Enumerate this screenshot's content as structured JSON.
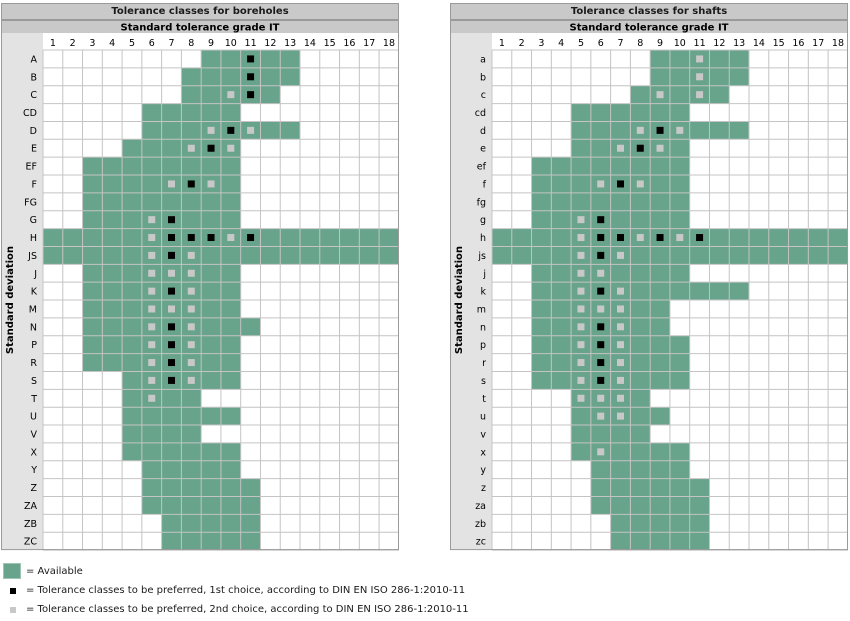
{
  "colors": {
    "available": "#67a48b",
    "first_choice": "#000000",
    "second_choice": "#c8c8c8",
    "grid_line": "#c4c4c4",
    "header_bg": "#c9c9c9",
    "sidebar_bg": "#e3e3e3"
  },
  "grades": [
    1,
    2,
    3,
    4,
    5,
    6,
    7,
    8,
    9,
    10,
    11,
    12,
    13,
    14,
    15,
    16,
    17,
    18
  ],
  "panels": [
    {
      "title": "Tolerance classes for boreholes",
      "subtitle": "Standard tolerance grade IT",
      "axis_label": "Standard deviation",
      "rows": [
        {
          "label": "A",
          "avail": [
            9,
            13
          ],
          "first": [
            11
          ],
          "second": []
        },
        {
          "label": "B",
          "avail": [
            8,
            13
          ],
          "first": [
            11
          ],
          "second": []
        },
        {
          "label": "C",
          "avail": [
            8,
            12
          ],
          "first": [
            11
          ],
          "second": [
            10
          ]
        },
        {
          "label": "CD",
          "avail": [
            6,
            10
          ],
          "first": [],
          "second": []
        },
        {
          "label": "D",
          "avail": [
            6,
            13
          ],
          "first": [
            10
          ],
          "second": [
            9,
            11
          ]
        },
        {
          "label": "E",
          "avail": [
            5,
            10
          ],
          "first": [
            9
          ],
          "second": [
            8,
            10
          ]
        },
        {
          "label": "EF",
          "avail": [
            3,
            10
          ],
          "first": [],
          "second": []
        },
        {
          "label": "F",
          "avail": [
            3,
            10
          ],
          "first": [
            8
          ],
          "second": [
            7,
            9
          ]
        },
        {
          "label": "FG",
          "avail": [
            3,
            10
          ],
          "first": [],
          "second": []
        },
        {
          "label": "G",
          "avail": [
            3,
            10
          ],
          "first": [
            7
          ],
          "second": [
            6
          ]
        },
        {
          "label": "H",
          "avail": [
            1,
            18
          ],
          "first": [
            7,
            8,
            9,
            11
          ],
          "second": [
            6,
            10
          ]
        },
        {
          "label": "JS",
          "avail": [
            1,
            18
          ],
          "first": [
            7
          ],
          "second": [
            6,
            8
          ]
        },
        {
          "label": "J",
          "avail": [
            3,
            10
          ],
          "first": [],
          "second": [
            6,
            7,
            8
          ]
        },
        {
          "label": "K",
          "avail": [
            3,
            10
          ],
          "first": [
            7
          ],
          "second": [
            6,
            8
          ]
        },
        {
          "label": "M",
          "avail": [
            3,
            10
          ],
          "first": [],
          "second": [
            6,
            7,
            8
          ]
        },
        {
          "label": "N",
          "avail": [
            3,
            11
          ],
          "first": [
            7
          ],
          "second": [
            6,
            8
          ]
        },
        {
          "label": "P",
          "avail": [
            3,
            10
          ],
          "first": [
            7
          ],
          "second": [
            6,
            8
          ]
        },
        {
          "label": "R",
          "avail": [
            3,
            10
          ],
          "first": [
            7
          ],
          "second": [
            6,
            8
          ]
        },
        {
          "label": "S",
          "avail": [
            5,
            10
          ],
          "first": [
            7
          ],
          "second": [
            6,
            8
          ]
        },
        {
          "label": "T",
          "avail": [
            5,
            8
          ],
          "first": [],
          "second": [
            6
          ]
        },
        {
          "label": "U",
          "avail": [
            5,
            10
          ],
          "first": [],
          "second": []
        },
        {
          "label": "V",
          "avail": [
            5,
            8
          ],
          "first": [],
          "second": []
        },
        {
          "label": "X",
          "avail": [
            5,
            10
          ],
          "first": [],
          "second": []
        },
        {
          "label": "Y",
          "avail": [
            6,
            10
          ],
          "first": [],
          "second": []
        },
        {
          "label": "Z",
          "avail": [
            6,
            11
          ],
          "first": [],
          "second": []
        },
        {
          "label": "ZA",
          "avail": [
            6,
            11
          ],
          "first": [],
          "second": []
        },
        {
          "label": "ZB",
          "avail": [
            7,
            11
          ],
          "first": [],
          "second": []
        },
        {
          "label": "ZC",
          "avail": [
            7,
            11
          ],
          "first": [],
          "second": []
        }
      ]
    },
    {
      "title": "Tolerance classes for shafts",
      "subtitle": "Standard tolerance grade IT",
      "axis_label": "Standard deviation",
      "rows": [
        {
          "label": "a",
          "avail": [
            9,
            13
          ],
          "first": [],
          "second": [
            11
          ]
        },
        {
          "label": "b",
          "avail": [
            9,
            13
          ],
          "first": [],
          "second": [
            11
          ]
        },
        {
          "label": "c",
          "avail": [
            8,
            12
          ],
          "first": [],
          "second": [
            9,
            11
          ]
        },
        {
          "label": "cd",
          "avail": [
            5,
            10
          ],
          "first": [],
          "second": []
        },
        {
          "label": "d",
          "avail": [
            5,
            13
          ],
          "first": [
            9
          ],
          "second": [
            8,
            10
          ]
        },
        {
          "label": "e",
          "avail": [
            5,
            10
          ],
          "first": [
            8
          ],
          "second": [
            7,
            9
          ]
        },
        {
          "label": "ef",
          "avail": [
            3,
            10
          ],
          "first": [],
          "second": []
        },
        {
          "label": "f",
          "avail": [
            3,
            10
          ],
          "first": [
            7
          ],
          "second": [
            6,
            8
          ]
        },
        {
          "label": "fg",
          "avail": [
            3,
            10
          ],
          "first": [],
          "second": []
        },
        {
          "label": "g",
          "avail": [
            3,
            10
          ],
          "first": [
            6
          ],
          "second": [
            5
          ]
        },
        {
          "label": "h",
          "avail": [
            1,
            18
          ],
          "first": [
            6,
            7,
            9,
            11
          ],
          "second": [
            5,
            8,
            10
          ]
        },
        {
          "label": "js",
          "avail": [
            1,
            18
          ],
          "first": [
            6
          ],
          "second": [
            5,
            7
          ]
        },
        {
          "label": "j",
          "avail": [
            3,
            10
          ],
          "first": [],
          "second": [
            5,
            6
          ]
        },
        {
          "label": "k",
          "avail": [
            3,
            13
          ],
          "first": [
            6
          ],
          "second": [
            5,
            7
          ]
        },
        {
          "label": "m",
          "avail": [
            3,
            9
          ],
          "first": [],
          "second": [
            5,
            6,
            7
          ]
        },
        {
          "label": "n",
          "avail": [
            3,
            9
          ],
          "first": [
            6
          ],
          "second": [
            5,
            7
          ]
        },
        {
          "label": "p",
          "avail": [
            3,
            10
          ],
          "first": [
            6
          ],
          "second": [
            5,
            7
          ]
        },
        {
          "label": "r",
          "avail": [
            3,
            10
          ],
          "first": [
            6
          ],
          "second": [
            5,
            7
          ]
        },
        {
          "label": "s",
          "avail": [
            3,
            10
          ],
          "first": [
            6
          ],
          "second": [
            5,
            7
          ]
        },
        {
          "label": "t",
          "avail": [
            5,
            8
          ],
          "first": [],
          "second": [
            5,
            6,
            7
          ]
        },
        {
          "label": "u",
          "avail": [
            5,
            9
          ],
          "first": [],
          "second": [
            6,
            7
          ]
        },
        {
          "label": "v",
          "avail": [
            5,
            8
          ],
          "first": [],
          "second": []
        },
        {
          "label": "x",
          "avail": [
            5,
            10
          ],
          "first": [],
          "second": [
            6
          ]
        },
        {
          "label": "y",
          "avail": [
            6,
            10
          ],
          "first": [],
          "second": []
        },
        {
          "label": "z",
          "avail": [
            6,
            11
          ],
          "first": [],
          "second": []
        },
        {
          "label": "za",
          "avail": [
            6,
            11
          ],
          "first": [],
          "second": []
        },
        {
          "label": "zb",
          "avail": [
            7,
            11
          ],
          "first": [],
          "second": []
        },
        {
          "label": "zc",
          "avail": [
            7,
            11
          ],
          "first": [],
          "second": []
        }
      ]
    }
  ],
  "legend": {
    "available": "= Available",
    "first_choice": "= Tolerance classes to be preferred, 1st choice, according to DIN EN ISO 286-1:2010-11",
    "second_choice": "= Tolerance classes to be preferred, 2nd choice, according to DIN EN ISO 286-1:2010-11"
  }
}
